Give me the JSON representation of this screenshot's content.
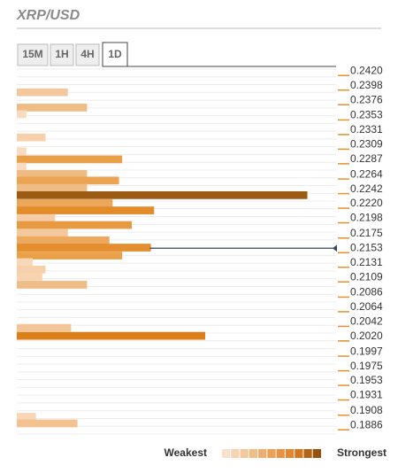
{
  "chart_data": {
    "type": "bar",
    "title": "XRP/USD",
    "tabs": [
      "15M",
      "1H",
      "4H",
      "1D"
    ],
    "active_tab": 3,
    "levels": [
      0.2388,
      0.2365,
      0.2355,
      0.232,
      0.2299,
      0.2287,
      0.2276,
      0.2265,
      0.2255,
      0.2244,
      0.2233,
      0.2221,
      0.221,
      0.2198,
      0.2188,
      0.2176,
      0.2165,
      0.2154,
      0.2142,
      0.2132,
      0.2121,
      0.211,
      0.2098,
      0.2033,
      0.2021,
      0.1899,
      0.1889
    ],
    "values": [
      1.6,
      2.2,
      0.3,
      0.9,
      0.3,
      3.3,
      0.3,
      2.2,
      3.2,
      2.2,
      9.1,
      3.0,
      4.3,
      1.2,
      3.6,
      1.6,
      2.9,
      4.2,
      3.3,
      0.5,
      0.9,
      0.8,
      2.2,
      1.7,
      5.9,
      0.6,
      1.9
    ],
    "colors": [
      "#f3c89c",
      "#f0bc85",
      "#f9dcc0",
      "#f6d0ab",
      "#f9dcc0",
      "#e9a049",
      "#f9dcc0",
      "#f0bc85",
      "#eaa452",
      "#f0bc85",
      "#9c5b13",
      "#eba85a",
      "#e48c2a",
      "#f5cca5",
      "#e89a42",
      "#f3c89c",
      "#ecaa5e",
      "#e48e2e",
      "#e9a049",
      "#f8d8b9",
      "#f6d0ab",
      "#f7d3b0",
      "#f0bc85",
      "#f3c699",
      "#dd7f18",
      "#f8d6b6",
      "#f2c290"
    ],
    "xlim": [
      0,
      10
    ],
    "ylim": [
      0.1873,
      0.2423
    ],
    "yticks": [
      {
        "value": 0.242,
        "label": "0.2420"
      },
      {
        "value": 0.2398,
        "label": "0.2398"
      },
      {
        "value": 0.2376,
        "label": "0.2376"
      },
      {
        "value": 0.2353,
        "label": "0.2353"
      },
      {
        "value": 0.2331,
        "label": "0.2331"
      },
      {
        "value": 0.2309,
        "label": "0.2309"
      },
      {
        "value": 0.2287,
        "label": "0.2287"
      },
      {
        "value": 0.2264,
        "label": "0.2264"
      },
      {
        "value": 0.2242,
        "label": "0.2242"
      },
      {
        "value": 0.222,
        "label": "0.2220"
      },
      {
        "value": 0.2198,
        "label": "0.2198"
      },
      {
        "value": 0.2175,
        "label": "0.2175"
      },
      {
        "value": 0.2153,
        "label": "0.2153"
      },
      {
        "value": 0.2131,
        "label": "0.2131"
      },
      {
        "value": 0.2109,
        "label": "0.2109"
      },
      {
        "value": 0.2086,
        "label": "0.2086"
      },
      {
        "value": 0.2064,
        "label": "0.2064"
      },
      {
        "value": 0.2042,
        "label": "0.2042"
      },
      {
        "value": 0.202,
        "label": "0.2020"
      },
      {
        "value": 0.1997,
        "label": "0.1997"
      },
      {
        "value": 0.1975,
        "label": "0.1975"
      },
      {
        "value": 0.1953,
        "label": "0.1953"
      },
      {
        "value": 0.1931,
        "label": "0.1931"
      },
      {
        "value": 0.1908,
        "label": "0.1908"
      },
      {
        "value": 0.1886,
        "label": "0.1886"
      }
    ],
    "tick_color": "#e8902a",
    "current_price": 0.2153,
    "legend": {
      "weakest": "Weakest",
      "strongest": "Strongest",
      "palette": [
        "#fae0c8",
        "#f7d3b0",
        "#f5c79c",
        "#f2bb87",
        "#efae70",
        "#eca15a",
        "#e99444",
        "#e38730",
        "#d27820",
        "#b46614",
        "#96520e"
      ]
    }
  }
}
